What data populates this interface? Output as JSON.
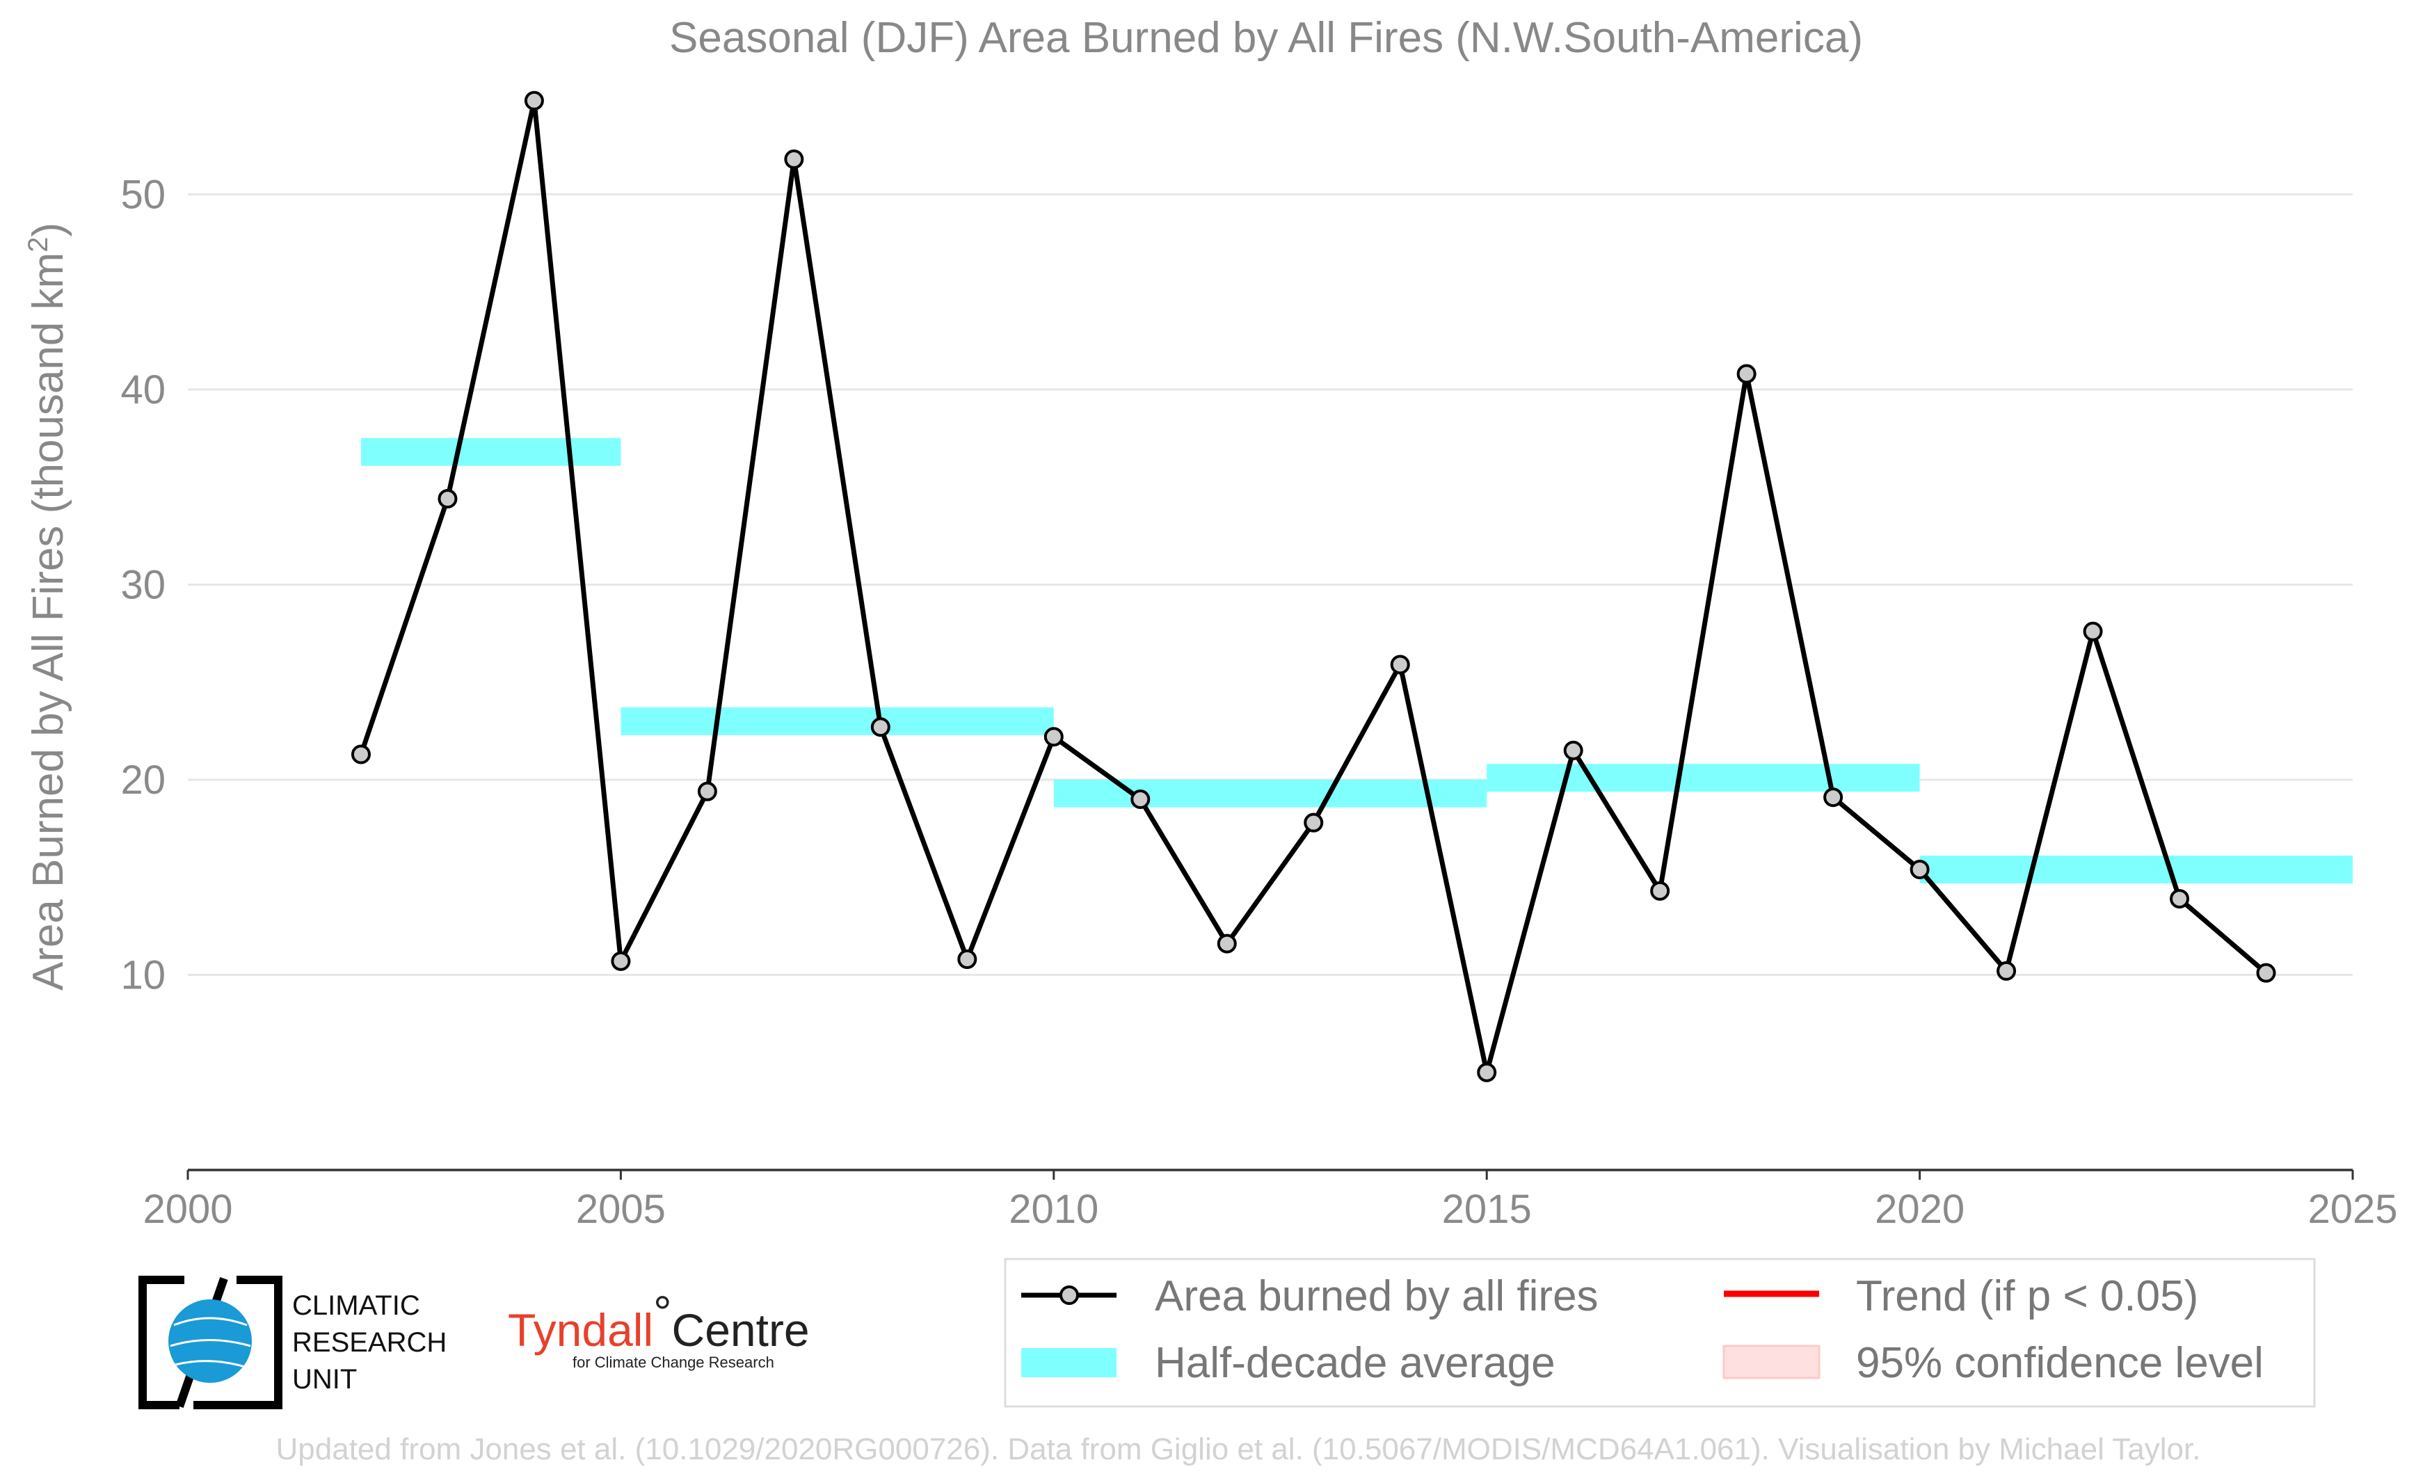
{
  "chart_data": {
    "type": "line",
    "title": "Seasonal (DJF) Area Burned by All Fires (N.W.South-America)",
    "ylabel": "Area Burned by All Fires (thousand km",
    "ylabel_sup": "2",
    "ylabel_close": ")",
    "xlabel": "",
    "xlim": [
      2000,
      2025
    ],
    "ylim": [
      0,
      58
    ],
    "xticks": [
      "2000",
      "2005",
      "2010",
      "2015",
      "2020",
      "2025"
    ],
    "yticks": [
      "10",
      "20",
      "30",
      "40",
      "50"
    ],
    "grid": "horizontal",
    "series": [
      {
        "name": "Area burned by all fires",
        "color": "#000000",
        "x": [
          2002,
          2003,
          2004,
          2005,
          2006,
          2007,
          2008,
          2009,
          2010,
          2011,
          2012,
          2013,
          2014,
          2015,
          2016,
          2017,
          2018,
          2019,
          2020,
          2021,
          2022,
          2023,
          2024
        ],
        "y": [
          21.3,
          34.4,
          54.8,
          10.7,
          19.4,
          51.8,
          22.7,
          10.8,
          22.2,
          19.0,
          11.6,
          17.8,
          25.9,
          5.0,
          21.5,
          14.3,
          40.8,
          19.1,
          15.4,
          10.2,
          27.6,
          13.9,
          10.1
        ]
      }
    ],
    "half_decade_average": {
      "name": "Half-decade average",
      "color": "#80ffff",
      "segments": [
        {
          "x0": 2002,
          "x1": 2005,
          "y": 36.8
        },
        {
          "x0": 2005,
          "x1": 2010,
          "y": 23.0
        },
        {
          "x0": 2010,
          "x1": 2015,
          "y": 19.3
        },
        {
          "x0": 2015,
          "x1": 2020,
          "y": 20.1
        },
        {
          "x0": 2020,
          "x1": 2025,
          "y": 15.4
        }
      ]
    },
    "legend": {
      "placement": "bottom-right",
      "items": [
        {
          "label": "Area burned by all fires",
          "kind": "line-marker",
          "color": "#000000"
        },
        {
          "label": "Trend (if p < 0.05)",
          "kind": "line",
          "color": "#ff0000"
        },
        {
          "label": "Half-decade average",
          "kind": "band",
          "color": "#80ffff"
        },
        {
          "label": "95% confidence level",
          "kind": "band",
          "color": "#ffe0e0"
        }
      ]
    }
  },
  "logos": {
    "cru_lines": [
      "CLIMATIC",
      "RESEARCH",
      "UNIT"
    ],
    "tyndall_name": "Tyndall",
    "tyndall_degree": "°",
    "tyndall_centre": "Centre",
    "tyndall_sub": "for Climate Change Research"
  },
  "footer": "Updated from Jones et al. (10.1029/2020RG000726). Data from Giglio et al. (10.5067/MODIS/MCD64A1.061). Visualisation by Michael Taylor."
}
